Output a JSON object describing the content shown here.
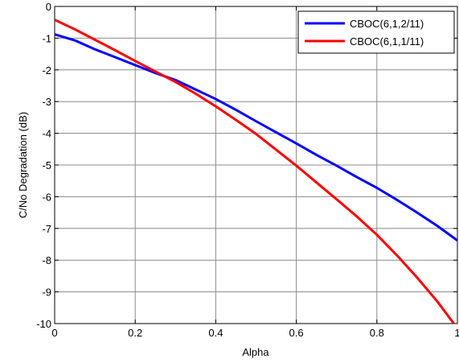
{
  "chart_data": {
    "type": "line",
    "xlabel": "Alpha",
    "ylabel": "C/No Degradation (dB)",
    "xlim": [
      0,
      1
    ],
    "ylim": [
      -10,
      0
    ],
    "grid": true,
    "legend_position": "top-right",
    "xticks": [
      "0",
      "0.2",
      "0.4",
      "0.6",
      "0.8",
      "1"
    ],
    "yticks": [
      "0",
      "-1",
      "-2",
      "-3",
      "-4",
      "-5",
      "-6",
      "-7",
      "-8",
      "-9",
      "-10"
    ],
    "x": [
      0,
      0.05,
      0.1,
      0.15,
      0.2,
      0.25,
      0.3,
      0.35,
      0.4,
      0.45,
      0.5,
      0.55,
      0.6,
      0.65,
      0.7,
      0.75,
      0.8,
      0.85,
      0.9,
      0.95,
      1
    ],
    "series": [
      {
        "name": "CBOC(6,1,2/11)",
        "color": "#0000ff",
        "values": [
          -0.88,
          -1.07,
          -1.35,
          -1.6,
          -1.85,
          -2.1,
          -2.32,
          -2.62,
          -2.92,
          -3.26,
          -3.62,
          -3.97,
          -4.32,
          -4.68,
          -5.02,
          -5.38,
          -5.72,
          -6.1,
          -6.5,
          -6.92,
          -7.38
        ]
      },
      {
        "name": "CBOC(6,1,1/11)",
        "color": "#ff0000",
        "values": [
          -0.42,
          -0.72,
          -1.05,
          -1.38,
          -1.72,
          -2.05,
          -2.38,
          -2.75,
          -3.15,
          -3.58,
          -4.02,
          -4.52,
          -5.02,
          -5.55,
          -6.08,
          -6.62,
          -7.2,
          -7.85,
          -8.55,
          -9.3,
          -10.15
        ]
      }
    ]
  }
}
